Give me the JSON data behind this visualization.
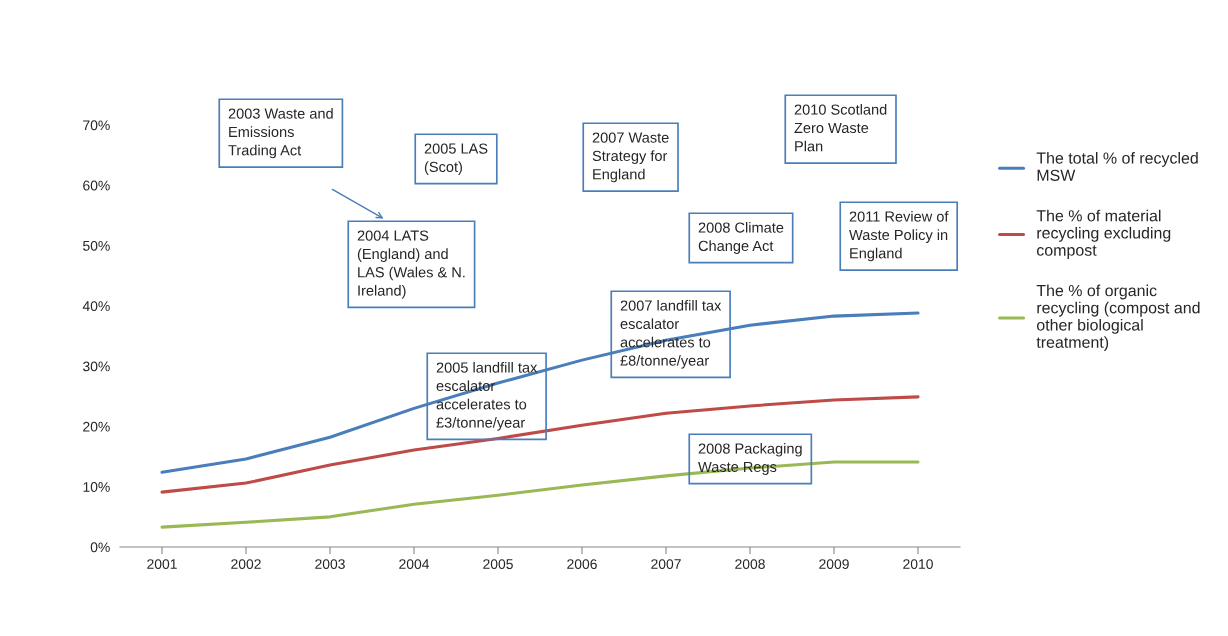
{
  "chart_data": {
    "type": "line",
    "categories": [
      "2001",
      "2002",
      "2003",
      "2004",
      "2005",
      "2006",
      "2007",
      "2008",
      "2009",
      "2010"
    ],
    "series": [
      {
        "name": "The total % of recycled\nMSW",
        "color": "#4a7ebb",
        "values": [
          12.4,
          14.6,
          18.2,
          23.0,
          27.2,
          31.0,
          34.3,
          36.8,
          38.3,
          38.8
        ]
      },
      {
        "name": "The % of material\nrecycling excluding\ncompost",
        "color": "#be4b48",
        "values": [
          9.1,
          10.6,
          13.6,
          16.1,
          18.0,
          20.2,
          22.2,
          23.4,
          24.4,
          24.9
        ]
      },
      {
        "name": "The % of organic\nrecycling (compost and\nother biological\ntreatment)",
        "color": "#98b954",
        "values": [
          3.3,
          4.1,
          5.0,
          7.1,
          8.6,
          10.3,
          11.8,
          13.1,
          14.1,
          14.1
        ]
      }
    ],
    "ylim": [
      0,
      70
    ],
    "yticks": [
      {
        "value": 0,
        "label": "0%"
      },
      {
        "value": 10,
        "label": "10%"
      },
      {
        "value": 20,
        "label": "20%"
      },
      {
        "value": 30,
        "label": "30%"
      },
      {
        "value": 40,
        "label": "40%"
      },
      {
        "value": 50,
        "label": "50%"
      },
      {
        "value": 60,
        "label": "60%"
      },
      {
        "value": 70,
        "label": "70%"
      }
    ],
    "annotations": [
      "2003 Waste and\nEmissions\nTrading Act",
      "2005 LAS\n(Scot)",
      "2007 Waste\nStrategy for\nEngland",
      "2010 Scotland\nZero Waste\nPlan",
      "2004 LATS\n(England) and\nLAS (Wales & N.\nIreland)",
      "2008 Climate\nChange Act",
      "2011 Review of\nWaste Policy in\nEngland",
      "2007 landfill tax\nescalator\naccelerates to\n£8/tonne/year",
      "2005 landfill tax\nescalator\naccelerates to\n£3/tonne/year",
      "2008 Packaging\nWaste Regs"
    ],
    "grid": false,
    "legend": "right",
    "marker": "none",
    "line_style": "solid"
  }
}
